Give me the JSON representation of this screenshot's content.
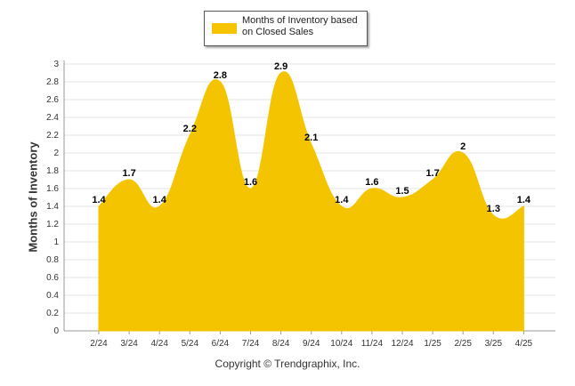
{
  "chart_data": {
    "type": "area",
    "categories": [
      "2/24",
      "3/24",
      "4/24",
      "5/24",
      "6/24",
      "7/24",
      "8/24",
      "9/24",
      "10/24",
      "11/24",
      "12/24",
      "1/25",
      "2/25",
      "3/25",
      "4/25"
    ],
    "series": [
      {
        "name": "Months of Inventory based on Closed Sales",
        "values": [
          1.4,
          1.7,
          1.4,
          2.2,
          2.8,
          1.6,
          2.9,
          2.1,
          1.4,
          1.6,
          1.5,
          1.7,
          2,
          1.3,
          1.4
        ],
        "labels": [
          "1.4",
          "1.7",
          "1.4",
          "2.2",
          "2.8",
          "1.6",
          "2.9",
          "2.1",
          "1.4",
          "1.6",
          "1.5",
          "1.7",
          "2",
          "1.3",
          "1.4"
        ],
        "color": "#F5C400"
      }
    ],
    "yticks": [
      "0",
      "0.2",
      "0.4",
      "0.6",
      "0.8",
      "1",
      "1.2",
      "1.4",
      "1.6",
      "1.8",
      "2",
      "2.2",
      "2.4",
      "2.6",
      "2.8",
      "3"
    ],
    "ylim": [
      0,
      3
    ],
    "ylabel": "Months of Inventory",
    "xlabel": "",
    "grid": true,
    "legend_position": "top-center"
  },
  "legend": {
    "line1": "Months of Inventory based",
    "line2": "on Closed Sales"
  },
  "footer": {
    "copyright": "Copyright © Trendgraphix, Inc."
  }
}
